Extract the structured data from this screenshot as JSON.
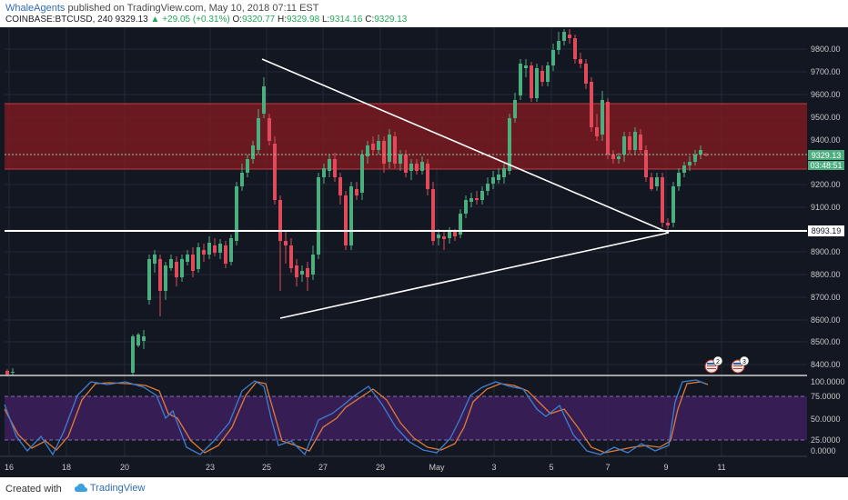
{
  "header": {
    "author": "WhaleAgents",
    "published_text": "published on TradingView.com, May 10, 2018 07:11 EST",
    "symbol": "COINBASE:BTCUSD, 240",
    "last": "9329.13",
    "change": "▲ +29.05 (+0.31%)",
    "open_label": "O:",
    "open": "9320.77",
    "high_label": "H:",
    "high": "9329.98",
    "low_label": "L:",
    "low": "9314.16",
    "close_label": "C:",
    "close": "9329.13"
  },
  "price_axis": {
    "ticks": [
      "9800.00",
      "9700.00",
      "9600.00",
      "9500.00",
      "9400.00",
      "9200.00",
      "9100.00",
      "8900.00",
      "8800.00",
      "8700.00",
      "8600.00",
      "8500.00",
      "8400.00"
    ],
    "current_price": "9329.13",
    "countdown": "03:48:51",
    "line_price": "8993.19"
  },
  "osc_axis": {
    "ticks": [
      "100.0000",
      "75.0000",
      "50.0000",
      "25.0000",
      "0.0000"
    ]
  },
  "time_axis": {
    "labels": [
      "16",
      "18",
      "20",
      "23",
      "25",
      "27",
      "29",
      "May",
      "3",
      "5",
      "7",
      "9",
      "11"
    ]
  },
  "events": {
    "badge1": "2",
    "badge2": "3"
  },
  "footer": {
    "created_with": "Created with",
    "brand": "TradingView"
  },
  "colors": {
    "background": "#131722",
    "bull": "#4cae7e",
    "bear": "#e04a5a",
    "resistance_zone": "#8b1a1e",
    "oscillator_band": "#3d1f5c",
    "k_line": "#3d7fd1",
    "d_line": "#e07b39",
    "trendline": "#ffffff"
  }
}
